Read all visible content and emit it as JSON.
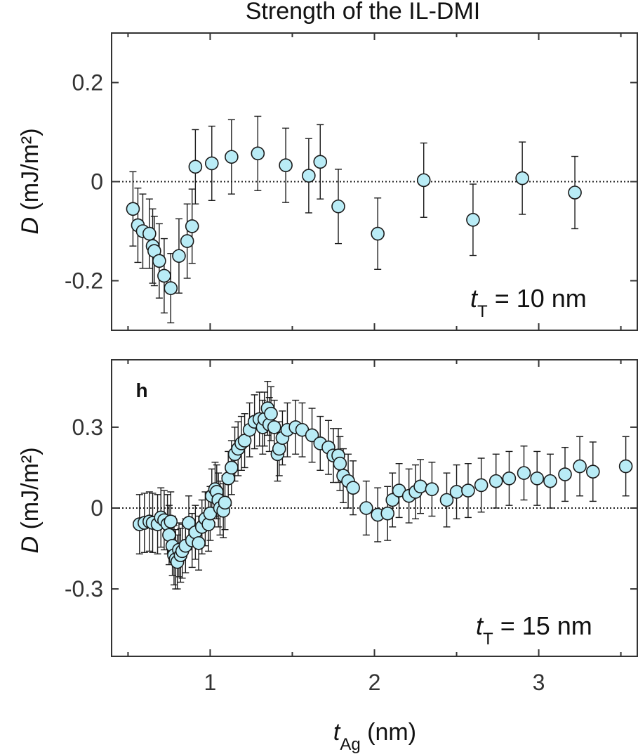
{
  "figure": {
    "title": "Strength of the IL-DMI",
    "xlabel_var": "t",
    "xlabel_sub": "Ag",
    "xlabel_unit": " (nm)",
    "xticks": [
      1,
      2,
      3
    ],
    "x_range": [
      0.4,
      3.6
    ]
  },
  "colors": {
    "marker_fill": "#b9ecf6",
    "marker_edge": "#1a1a1a",
    "errorbar": "#1a1a1a",
    "axis": "#333333"
  },
  "chart_data": [
    {
      "type": "scatter",
      "panel": "top",
      "panel_letter": "",
      "ylabel_var": "D",
      "ylabel_unit": " (mJ/m²)",
      "annotation": {
        "var": "t",
        "sub": "T",
        "text": " = 10 nm"
      },
      "ylim": [
        -0.3,
        0.3
      ],
      "yticks": [
        0.2,
        0,
        -0.2
      ],
      "ytick_labels": [
        "0.2",
        "0",
        "-0.2"
      ],
      "points": [
        {
          "x": 0.53,
          "y": -0.055,
          "err": 0.075
        },
        {
          "x": 0.56,
          "y": -0.088,
          "err": 0.075
        },
        {
          "x": 0.59,
          "y": -0.1,
          "err": 0.075
        },
        {
          "x": 0.63,
          "y": -0.105,
          "err": 0.07
        },
        {
          "x": 0.65,
          "y": -0.13,
          "err": 0.075
        },
        {
          "x": 0.66,
          "y": -0.14,
          "err": 0.07
        },
        {
          "x": 0.69,
          "y": -0.16,
          "err": 0.075
        },
        {
          "x": 0.72,
          "y": -0.19,
          "err": 0.075
        },
        {
          "x": 0.76,
          "y": -0.215,
          "err": 0.07
        },
        {
          "x": 0.81,
          "y": -0.15,
          "err": 0.075
        },
        {
          "x": 0.86,
          "y": -0.12,
          "err": 0.075
        },
        {
          "x": 0.89,
          "y": -0.09,
          "err": 0.075
        },
        {
          "x": 0.91,
          "y": 0.03,
          "err": 0.075
        },
        {
          "x": 1.01,
          "y": 0.037,
          "err": 0.075
        },
        {
          "x": 1.13,
          "y": 0.05,
          "err": 0.075
        },
        {
          "x": 1.29,
          "y": 0.057,
          "err": 0.075
        },
        {
          "x": 1.46,
          "y": 0.033,
          "err": 0.075
        },
        {
          "x": 1.6,
          "y": 0.012,
          "err": 0.075
        },
        {
          "x": 1.67,
          "y": 0.04,
          "err": 0.075
        },
        {
          "x": 1.78,
          "y": -0.05,
          "err": 0.075
        },
        {
          "x": 2.02,
          "y": -0.105,
          "err": 0.072
        },
        {
          "x": 2.3,
          "y": 0.003,
          "err": 0.075
        },
        {
          "x": 2.6,
          "y": -0.077,
          "err": 0.072
        },
        {
          "x": 2.9,
          "y": 0.007,
          "err": 0.073
        },
        {
          "x": 3.22,
          "y": -0.022,
          "err": 0.073
        }
      ]
    },
    {
      "type": "scatter",
      "panel": "bottom",
      "panel_letter": "h",
      "ylabel_var": "D",
      "ylabel_unit": " (mJ/m²)",
      "annotation": {
        "var": "t",
        "sub": "T",
        "text": " = 15 nm"
      },
      "ylim": [
        -0.55,
        0.55
      ],
      "yticks": [
        0.3,
        0,
        -0.3
      ],
      "ytick_labels": [
        "0.3",
        "0",
        "-0.3"
      ],
      "points": [
        {
          "x": 0.57,
          "y": -0.06,
          "err": 0.11
        },
        {
          "x": 0.6,
          "y": -0.055,
          "err": 0.11
        },
        {
          "x": 0.63,
          "y": -0.05,
          "err": 0.11
        },
        {
          "x": 0.65,
          "y": -0.055,
          "err": 0.11
        },
        {
          "x": 0.68,
          "y": -0.06,
          "err": 0.11
        },
        {
          "x": 0.7,
          "y": -0.035,
          "err": 0.11
        },
        {
          "x": 0.72,
          "y": -0.045,
          "err": 0.11
        },
        {
          "x": 0.74,
          "y": -0.06,
          "err": 0.11
        },
        {
          "x": 0.75,
          "y": -0.1,
          "err": 0.11
        },
        {
          "x": 0.76,
          "y": -0.05,
          "err": 0.11
        },
        {
          "x": 0.77,
          "y": -0.14,
          "err": 0.11
        },
        {
          "x": 0.78,
          "y": -0.175,
          "err": 0.11
        },
        {
          "x": 0.79,
          "y": -0.19,
          "err": 0.11
        },
        {
          "x": 0.8,
          "y": -0.2,
          "err": 0.1
        },
        {
          "x": 0.81,
          "y": -0.155,
          "err": 0.1
        },
        {
          "x": 0.82,
          "y": -0.175,
          "err": 0.1
        },
        {
          "x": 0.83,
          "y": -0.16,
          "err": 0.1
        },
        {
          "x": 0.85,
          "y": -0.14,
          "err": 0.1
        },
        {
          "x": 0.87,
          "y": -0.055,
          "err": 0.1
        },
        {
          "x": 0.89,
          "y": -0.12,
          "err": 0.1
        },
        {
          "x": 0.91,
          "y": -0.09,
          "err": 0.1
        },
        {
          "x": 0.93,
          "y": -0.13,
          "err": 0.1
        },
        {
          "x": 0.95,
          "y": -0.07,
          "err": 0.1
        },
        {
          "x": 0.97,
          "y": -0.04,
          "err": 0.1
        },
        {
          "x": 0.99,
          "y": -0.06,
          "err": 0.1
        },
        {
          "x": 1.0,
          "y": -0.02,
          "err": 0.1
        },
        {
          "x": 1.01,
          "y": 0.045,
          "err": 0.1
        },
        {
          "x": 1.03,
          "y": 0.07,
          "err": 0.1
        },
        {
          "x": 1.04,
          "y": 0.06,
          "err": 0.1
        },
        {
          "x": 1.05,
          "y": 0.03,
          "err": 0.1
        },
        {
          "x": 1.06,
          "y": 0.0,
          "err": 0.1
        },
        {
          "x": 1.08,
          "y": -0.01,
          "err": 0.1
        },
        {
          "x": 1.09,
          "y": 0.02,
          "err": 0.1
        },
        {
          "x": 1.11,
          "y": 0.11,
          "err": 0.1
        },
        {
          "x": 1.13,
          "y": 0.15,
          "err": 0.1
        },
        {
          "x": 1.15,
          "y": 0.2,
          "err": 0.1
        },
        {
          "x": 1.17,
          "y": 0.22,
          "err": 0.1
        },
        {
          "x": 1.19,
          "y": 0.24,
          "err": 0.1
        },
        {
          "x": 1.21,
          "y": 0.25,
          "err": 0.1
        },
        {
          "x": 1.24,
          "y": 0.29,
          "err": 0.1
        },
        {
          "x": 1.27,
          "y": 0.32,
          "err": 0.1
        },
        {
          "x": 1.3,
          "y": 0.33,
          "err": 0.1
        },
        {
          "x": 1.32,
          "y": 0.3,
          "err": 0.1
        },
        {
          "x": 1.33,
          "y": 0.33,
          "err": 0.1
        },
        {
          "x": 1.35,
          "y": 0.37,
          "err": 0.1
        },
        {
          "x": 1.36,
          "y": 0.31,
          "err": 0.1
        },
        {
          "x": 1.37,
          "y": 0.35,
          "err": 0.1
        },
        {
          "x": 1.39,
          "y": 0.3,
          "err": 0.1
        },
        {
          "x": 1.41,
          "y": 0.2,
          "err": 0.1
        },
        {
          "x": 1.42,
          "y": 0.22,
          "err": 0.1
        },
        {
          "x": 1.44,
          "y": 0.26,
          "err": 0.1
        },
        {
          "x": 1.47,
          "y": 0.29,
          "err": 0.1
        },
        {
          "x": 1.52,
          "y": 0.3,
          "err": 0.1
        },
        {
          "x": 1.56,
          "y": 0.29,
          "err": 0.1
        },
        {
          "x": 1.62,
          "y": 0.27,
          "err": 0.1
        },
        {
          "x": 1.67,
          "y": 0.24,
          "err": 0.1
        },
        {
          "x": 1.72,
          "y": 0.225,
          "err": 0.1
        },
        {
          "x": 1.75,
          "y": 0.195,
          "err": 0.1
        },
        {
          "x": 1.78,
          "y": 0.195,
          "err": 0.1
        },
        {
          "x": 1.79,
          "y": 0.165,
          "err": 0.1
        },
        {
          "x": 1.81,
          "y": 0.12,
          "err": 0.1
        },
        {
          "x": 1.84,
          "y": 0.1,
          "err": 0.1
        },
        {
          "x": 1.87,
          "y": 0.075,
          "err": 0.1
        },
        {
          "x": 1.95,
          "y": 0.0,
          "err": 0.1
        },
        {
          "x": 2.02,
          "y": -0.025,
          "err": 0.1
        },
        {
          "x": 2.08,
          "y": -0.02,
          "err": 0.1
        },
        {
          "x": 2.11,
          "y": 0.03,
          "err": 0.1
        },
        {
          "x": 2.15,
          "y": 0.065,
          "err": 0.1
        },
        {
          "x": 2.21,
          "y": 0.045,
          "err": 0.1
        },
        {
          "x": 2.25,
          "y": 0.06,
          "err": 0.1
        },
        {
          "x": 2.28,
          "y": 0.08,
          "err": 0.1
        },
        {
          "x": 2.35,
          "y": 0.07,
          "err": 0.1
        },
        {
          "x": 2.44,
          "y": 0.03,
          "err": 0.1
        },
        {
          "x": 2.5,
          "y": 0.06,
          "err": 0.1
        },
        {
          "x": 2.57,
          "y": 0.065,
          "err": 0.1
        },
        {
          "x": 2.65,
          "y": 0.085,
          "err": 0.1
        },
        {
          "x": 2.74,
          "y": 0.1,
          "err": 0.1
        },
        {
          "x": 2.82,
          "y": 0.11,
          "err": 0.1
        },
        {
          "x": 2.91,
          "y": 0.13,
          "err": 0.1
        },
        {
          "x": 2.99,
          "y": 0.11,
          "err": 0.1
        },
        {
          "x": 3.07,
          "y": 0.1,
          "err": 0.1
        },
        {
          "x": 3.16,
          "y": 0.125,
          "err": 0.1
        },
        {
          "x": 3.25,
          "y": 0.155,
          "err": 0.11
        },
        {
          "x": 3.33,
          "y": 0.135,
          "err": 0.11
        },
        {
          "x": 3.53,
          "y": 0.155,
          "err": 0.11
        }
      ]
    }
  ]
}
